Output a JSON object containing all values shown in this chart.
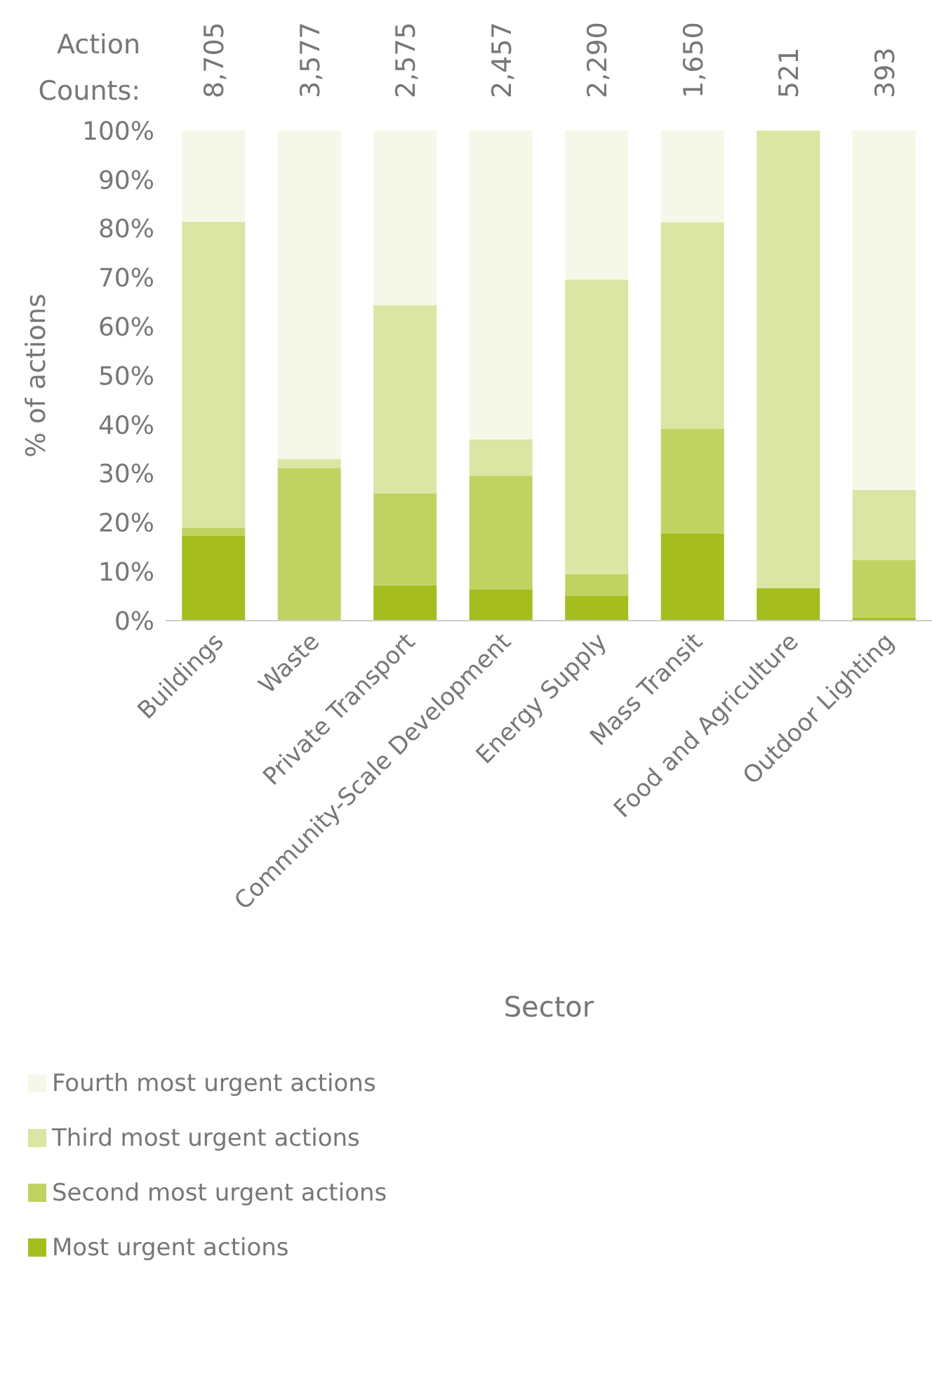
{
  "chart_data": {
    "type": "bar",
    "stacked": true,
    "xlabel": "Sector",
    "ylabel": "% of actions",
    "categories": [
      "Buildings",
      "Waste",
      "Private Transport",
      "Community-Scale Development",
      "Energy Supply",
      "Mass Transit",
      "Food and Agriculture",
      "Outdoor Lighting"
    ],
    "series": [
      {
        "name": "Most urgent actions",
        "color": "#a5bd1f",
        "values": [
          17.4,
          0,
          7.2,
          6.3,
          5.0,
          17.8,
          6.6,
          0.6
        ]
      },
      {
        "name": "Second most urgent actions",
        "color": "#c0d362",
        "values": [
          1.5,
          31.1,
          18.8,
          23.2,
          4.5,
          21.4,
          0,
          11.8
        ]
      },
      {
        "name": "Third most urgent actions",
        "color": "#dbe5a4",
        "values": [
          62.5,
          1.9,
          38.4,
          7.5,
          60.1,
          42.1,
          93.4,
          14.3
        ]
      },
      {
        "name": "Fourth most urgent actions",
        "color": "#f5f8e8",
        "values": [
          18.6,
          67.0,
          35.6,
          63.0,
          30.4,
          18.7,
          0,
          73.3
        ]
      }
    ],
    "ylim": [
      0,
      100
    ],
    "yticks": [
      {
        "value": 0,
        "label": "0%"
      },
      {
        "value": 10,
        "label": "10%"
      },
      {
        "value": 20,
        "label": "20%"
      },
      {
        "value": 30,
        "label": "30%"
      },
      {
        "value": 40,
        "label": "40%"
      },
      {
        "value": 50,
        "label": "50%"
      },
      {
        "value": 60,
        "label": "60%"
      },
      {
        "value": 70,
        "label": "70%"
      },
      {
        "value": 80,
        "label": "80%"
      },
      {
        "value": 90,
        "label": "90%"
      },
      {
        "value": 100,
        "label": "100%"
      }
    ],
    "grid": false,
    "legend": "bottom",
    "annotations": [
      "Action Counts:",
      "8,705",
      "3,577",
      "2,575",
      "2,457",
      "2,290",
      "1,650",
      "521",
      "393"
    ]
  }
}
